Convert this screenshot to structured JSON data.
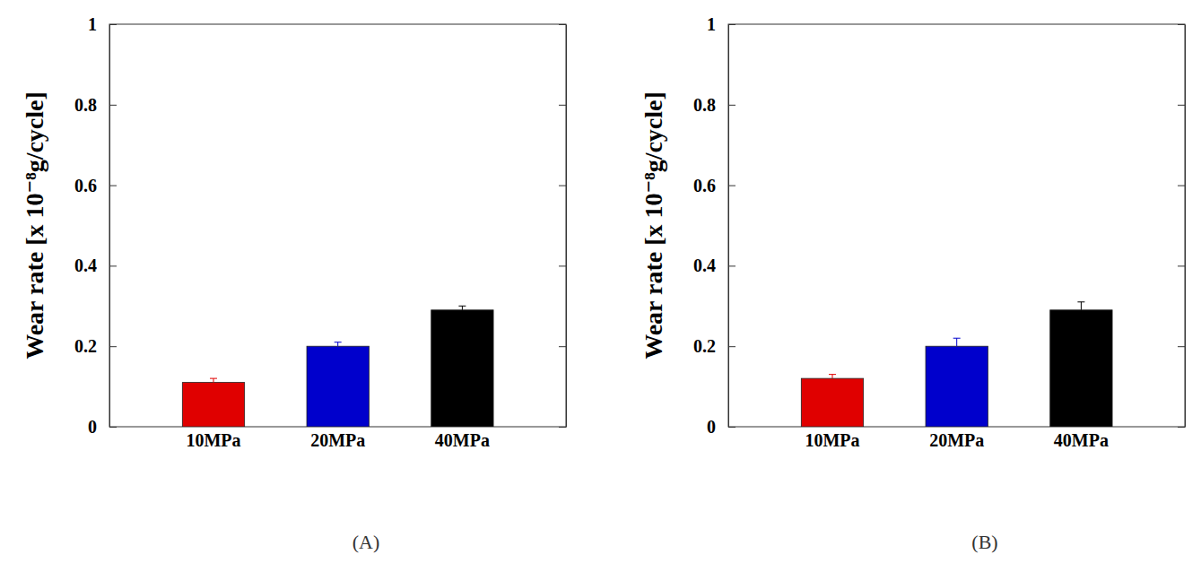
{
  "chart_data": [
    {
      "type": "bar",
      "title": "(A)",
      "y_label": "Wear rate [x 10⁻⁸g/cycle]",
      "categories": [
        "10MPa",
        "20MPa",
        "40MPa"
      ],
      "values": [
        0.11,
        0.2,
        0.29
      ],
      "errors": [
        0.01,
        0.01,
        0.01
      ],
      "colors": [
        "#e00000",
        "#0000cc",
        "#000000"
      ],
      "ylim": [
        0,
        1
      ],
      "yticks": [
        0,
        0.2,
        0.4,
        0.6,
        0.8,
        1
      ]
    },
    {
      "type": "bar",
      "title": "(B)",
      "y_label": "Wear rate [x 10⁻⁸g/cycle]",
      "categories": [
        "10MPa",
        "20MPa",
        "40MPa"
      ],
      "values": [
        0.12,
        0.2,
        0.29
      ],
      "errors": [
        0.01,
        0.02,
        0.02
      ],
      "colors": [
        "#e00000",
        "#0000cc",
        "#000000"
      ],
      "ylim": [
        0,
        1
      ],
      "yticks": [
        0,
        0.2,
        0.4,
        0.6,
        0.8,
        1
      ]
    }
  ]
}
